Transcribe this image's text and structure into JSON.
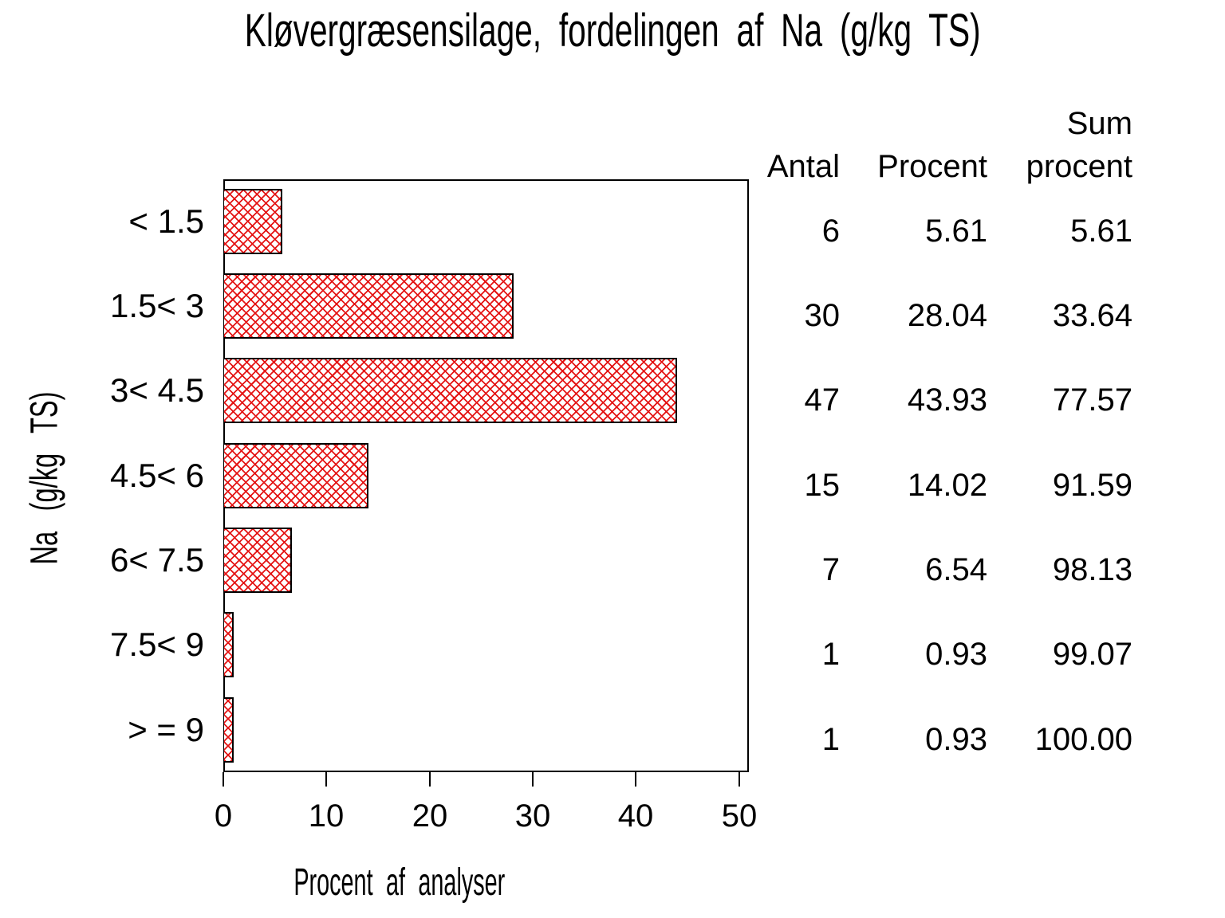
{
  "title": "Kløvergræsensilage, fordelingen af Na (g/kg TS)",
  "chart_data": {
    "type": "bar",
    "orientation": "horizontal",
    "title": "Kløvergræsensilage, fordelingen af Na (g/kg TS)",
    "xlabel": "Procent af analyser",
    "ylabel": "Na (g/kg TS)",
    "categories": [
      "< 1.5",
      "1.5< 3",
      "3< 4.5",
      "4.5< 6",
      "6< 7.5",
      "7.5< 9",
      "> = 9"
    ],
    "values": [
      5.61,
      28.04,
      43.93,
      14.02,
      6.54,
      0.93,
      0.93
    ],
    "counts": [
      6,
      30,
      47,
      15,
      7,
      1,
      1
    ],
    "cumulative": [
      5.61,
      33.64,
      77.57,
      91.59,
      98.13,
      99.07,
      100.0
    ],
    "xlim": [
      0,
      50
    ],
    "xticks": [
      "0",
      "10",
      "20",
      "30",
      "40",
      "50"
    ],
    "grid": false,
    "bar_fill": "red-diagonal-crosshatch",
    "bar_color": "#e41414",
    "bar_border_color": "#000000",
    "table": {
      "header_top": "Sum",
      "columns": [
        "Antal",
        "Procent",
        "procent"
      ],
      "rows": [
        [
          "6",
          "5.61",
          "5.61"
        ],
        [
          "30",
          "28.04",
          "33.64"
        ],
        [
          "47",
          "43.93",
          "77.57"
        ],
        [
          "15",
          "14.02",
          "91.59"
        ],
        [
          "7",
          "6.54",
          "98.13"
        ],
        [
          "1",
          "0.93",
          "99.07"
        ],
        [
          "1",
          "0.93",
          "100.00"
        ]
      ]
    }
  }
}
